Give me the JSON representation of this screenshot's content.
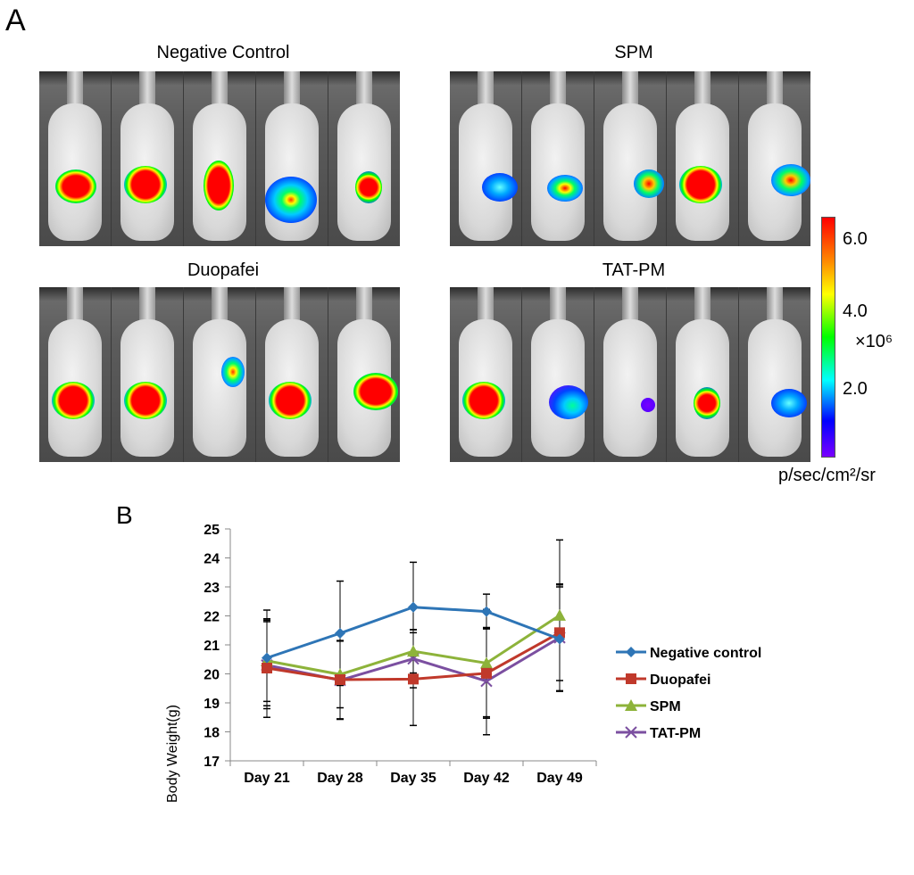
{
  "panel_a": {
    "letter": "A",
    "groups": [
      {
        "title": "Negative Control",
        "signals": [
          "oval-red",
          "round-red",
          "tall-red",
          "spread-cyan",
          "small-red"
        ]
      },
      {
        "title": "SPM",
        "signals": [
          "blue-cyan",
          "double-red",
          "small-yellow",
          "round-red",
          "heart-yellow"
        ]
      },
      {
        "title": "Duopafei",
        "signals": [
          "round-red",
          "round-red",
          "small-cyan",
          "round-red",
          "wide-red"
        ]
      },
      {
        "title": "TAT-PM",
        "signals": [
          "round-red",
          "purple-cyan",
          "tiny-purple",
          "small-red",
          "blue-cyan"
        ]
      }
    ],
    "colorbar": {
      "ticks": [
        "6.0",
        "4.0",
        "2.0"
      ],
      "multiplier": "×10⁶",
      "units": "p/sec/cm²/sr"
    }
  },
  "panel_b": {
    "letter": "B"
  },
  "chart_data": {
    "type": "line",
    "title": "",
    "xlabel": "",
    "ylabel": "Body Weight(g)",
    "ylim": [
      17,
      25
    ],
    "yticks": [
      17,
      18,
      19,
      20,
      21,
      22,
      23,
      24,
      25
    ],
    "categories": [
      "Day 21",
      "Day 28",
      "Day 35",
      "Day 42",
      "Day 49"
    ],
    "legend_position": "right",
    "grid": false,
    "series": [
      {
        "name": "Negative control",
        "color": "#2e75b6",
        "marker": "diamond",
        "values": [
          20.55,
          21.4,
          22.3,
          22.15,
          21.2
        ],
        "errors": [
          1.65,
          1.8,
          1.55,
          0.6,
          1.8
        ]
      },
      {
        "name": "Duopafei",
        "color": "#c0392b",
        "marker": "square",
        "values": [
          20.2,
          19.8,
          19.82,
          20.02,
          21.42
        ],
        "errors": [
          1.7,
          1.35,
          1.6,
          1.55,
          1.65
        ]
      },
      {
        "name": "SPM",
        "color": "#8db33a",
        "marker": "triangle",
        "values": [
          20.45,
          19.98,
          20.78,
          20.37,
          22.02
        ],
        "errors": [
          1.4,
          1.15,
          0.75,
          1.85,
          2.6
        ]
      },
      {
        "name": "TAT-PM",
        "color": "#7b4fa0",
        "marker": "x",
        "values": [
          20.3,
          19.78,
          20.52,
          19.75,
          21.25
        ],
        "errors": [
          1.5,
          1.35,
          1.0,
          1.85,
          1.85
        ]
      }
    ]
  }
}
